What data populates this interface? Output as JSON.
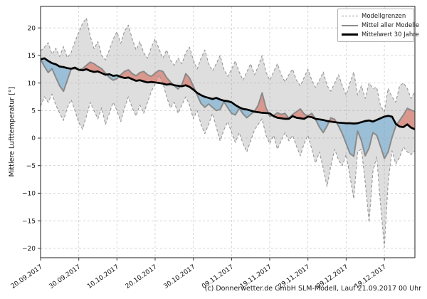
{
  "figure": {
    "ylabel": "Mittlere Lufttemperatur [°]",
    "caption": "(c) Donnerwetter.de GmbH SLM-Modell, Lauf 21.09.2017 00 Uhr",
    "background": "#ffffff"
  },
  "legend": {
    "position": "upper right",
    "items": [
      {
        "label": "Modellgrenzen",
        "style": "dashed",
        "color": "#999999"
      },
      {
        "label": "Mittel aller Modelle",
        "style": "solid",
        "color": "#8c8c8c"
      },
      {
        "label": "Mittelwert 30 Jahre",
        "style": "solid-bold",
        "color": "#000000"
      }
    ]
  },
  "colors": {
    "band_fill": "rgba(147,147,147,0.30)",
    "warm_anomaly_fill": "rgba(213,80,62,0.50)",
    "cold_anomaly_fill": "rgba(100,165,208,0.55)",
    "bound_line": "#979797",
    "model_mean_line": "#8a8a8a",
    "norm_line": "#000000",
    "grid_line": "#cdcdcd"
  },
  "chart_data": {
    "type": "line",
    "title": "",
    "xlabel": "",
    "ylabel": "Mittlere Lufttemperatur [°]",
    "grid": true,
    "legend_position": "upper right",
    "x_unit": "Tage ab 20.09.2017 (taegliche Werte)",
    "xlim": [
      0,
      98
    ],
    "ylim": [
      -21.7,
      23.9
    ],
    "xticks": {
      "positions": [
        0,
        10,
        20,
        30,
        40,
        50,
        60,
        70,
        80,
        90
      ],
      "labels": [
        "20.09.2017",
        "30.09.2017",
        "10.10.2017",
        "20.10.2017",
        "30.10.2017",
        "09.11.2017",
        "19.11.2017",
        "29.11.2017",
        "09.12.2017",
        "19.12.2017"
      ]
    },
    "yticks": {
      "values": [
        -20,
        -15,
        -10,
        -5,
        0,
        5,
        10,
        15,
        20
      ],
      "labels": [
        "−20",
        "−15",
        "−10",
        "−5",
        "0",
        "5",
        "10",
        "15",
        "20"
      ]
    },
    "series": [
      {
        "key": "upper",
        "name": "Modellgrenzen (obere Grenze)",
        "values": [
          15.8,
          16.5,
          17.3,
          15.2,
          16.3,
          14.8,
          16.6,
          14.6,
          15.5,
          17.5,
          19.2,
          20.8,
          21.8,
          18.5,
          16.2,
          17.5,
          15.0,
          14.2,
          16.0,
          18.0,
          19.3,
          17.2,
          19.5,
          20.5,
          18.0,
          16.0,
          17.5,
          15.5,
          14.5,
          16.5,
          18.0,
          16.2,
          14.5,
          16.0,
          14.2,
          13.2,
          14.5,
          13.5,
          15.5,
          16.5,
          14.2,
          12.5,
          14.5,
          16.0,
          13.5,
          12.2,
          13.5,
          15.0,
          12.5,
          11.2,
          12.5,
          14.0,
          12.0,
          10.5,
          12.0,
          13.5,
          11.5,
          13.0,
          15.0,
          12.0,
          10.5,
          12.0,
          13.5,
          11.5,
          10.2,
          11.5,
          12.5,
          10.5,
          9.5,
          11.0,
          12.5,
          10.5,
          9.2,
          10.5,
          12.0,
          9.5,
          8.5,
          10.0,
          11.5,
          9.5,
          7.8,
          10.0,
          12.0,
          7.8,
          9.5,
          7.2,
          10.0,
          9.0,
          9.2,
          5.8,
          4.8,
          9.0,
          7.5,
          6.5,
          9.5,
          10.0,
          9.0,
          7.2,
          8.5
        ]
      },
      {
        "key": "lower",
        "name": "Modellgrenzen (untere Grenze)",
        "values": [
          5.8,
          7.5,
          6.5,
          8.0,
          6.0,
          4.5,
          3.2,
          5.5,
          7.0,
          5.0,
          2.8,
          1.6,
          4.0,
          6.5,
          5.0,
          3.5,
          5.5,
          2.5,
          4.5,
          6.5,
          5.0,
          3.0,
          5.5,
          7.5,
          5.5,
          4.0,
          6.0,
          4.5,
          6.5,
          8.5,
          9.8,
          11.5,
          10.0,
          7.5,
          5.5,
          6.5,
          4.5,
          6.0,
          7.5,
          6.0,
          3.5,
          5.0,
          2.5,
          0.8,
          2.5,
          4.5,
          2.0,
          -0.5,
          1.5,
          3.0,
          1.0,
          -0.8,
          1.0,
          -1.0,
          -2.5,
          -0.5,
          1.5,
          2.5,
          3.5,
          0.5,
          -1.0,
          0.5,
          -2.0,
          -0.5,
          1.0,
          -0.5,
          0.5,
          -1.5,
          -3.2,
          -1.0,
          0.5,
          -2.0,
          -4.5,
          -2.5,
          -5.5,
          -8.8,
          -5.0,
          -2.0,
          -4.0,
          -5.0,
          -3.0,
          -7.0,
          -11.0,
          -2.5,
          -2.0,
          -8.0,
          -15.3,
          -6.0,
          -3.4,
          -12.0,
          -19.8,
          -8.0,
          -2.3,
          -4.7,
          -3.5,
          -1.6,
          -2.5,
          -3.0,
          -2.3
        ]
      },
      {
        "key": "mean",
        "name": "Mittel aller Modelle",
        "values": [
          14.3,
          13.0,
          11.9,
          12.6,
          11.0,
          9.5,
          8.5,
          10.5,
          12.5,
          12.6,
          12.4,
          12.6,
          13.2,
          13.8,
          13.5,
          13.0,
          12.6,
          11.8,
          11.0,
          10.5,
          10.8,
          11.5,
          12.1,
          12.4,
          11.7,
          11.3,
          11.9,
          12.1,
          11.5,
          11.2,
          11.8,
          12.3,
          12.1,
          11.0,
          10.2,
          9.5,
          8.9,
          9.7,
          11.7,
          10.9,
          9.4,
          7.8,
          6.3,
          5.6,
          6.2,
          5.6,
          5.0,
          5.2,
          6.6,
          5.5,
          4.5,
          4.2,
          5.4,
          4.4,
          3.7,
          4.3,
          4.9,
          6.0,
          8.2,
          5.5,
          4.0,
          4.1,
          4.6,
          4.3,
          4.5,
          3.6,
          4.3,
          4.8,
          5.3,
          4.4,
          4.0,
          4.5,
          3.4,
          2.0,
          1.0,
          2.2,
          3.7,
          3.4,
          2.2,
          0.8,
          -1.0,
          -2.8,
          -3.3,
          1.3,
          -0.5,
          -3.2,
          -1.8,
          1.0,
          0.5,
          -1.5,
          -3.7,
          -2.5,
          0.1,
          2.2,
          3.2,
          4.2,
          5.4,
          5.1,
          4.8
        ]
      },
      {
        "key": "norm",
        "name": "Mittelwert 30 Jahre",
        "values": [
          14.3,
          14.5,
          14.0,
          13.6,
          13.4,
          13.0,
          12.9,
          12.7,
          12.6,
          12.8,
          12.4,
          12.3,
          12.5,
          12.2,
          12.0,
          12.1,
          11.8,
          11.5,
          11.6,
          11.3,
          11.4,
          11.1,
          10.9,
          11.0,
          10.7,
          10.4,
          10.5,
          10.3,
          10.1,
          10.2,
          10.1,
          10.0,
          9.9,
          9.7,
          9.8,
          9.6,
          9.5,
          9.4,
          9.6,
          9.3,
          8.8,
          8.2,
          7.8,
          7.5,
          7.3,
          7.1,
          7.3,
          7.0,
          6.8,
          6.7,
          6.5,
          6.0,
          5.6,
          5.3,
          5.2,
          5.0,
          4.8,
          4.7,
          4.6,
          4.55,
          4.5,
          4.0,
          3.7,
          3.6,
          3.5,
          3.5,
          4.0,
          3.7,
          3.6,
          3.5,
          3.9,
          3.8,
          3.5,
          3.4,
          3.3,
          3.1,
          3.0,
          2.9,
          2.8,
          2.75,
          2.7,
          2.7,
          2.65,
          2.7,
          2.9,
          3.1,
          3.2,
          3.0,
          3.3,
          3.6,
          3.9,
          4.05,
          3.9,
          2.6,
          2.1,
          2.0,
          2.5,
          1.9,
          1.6
        ]
      }
    ]
  }
}
